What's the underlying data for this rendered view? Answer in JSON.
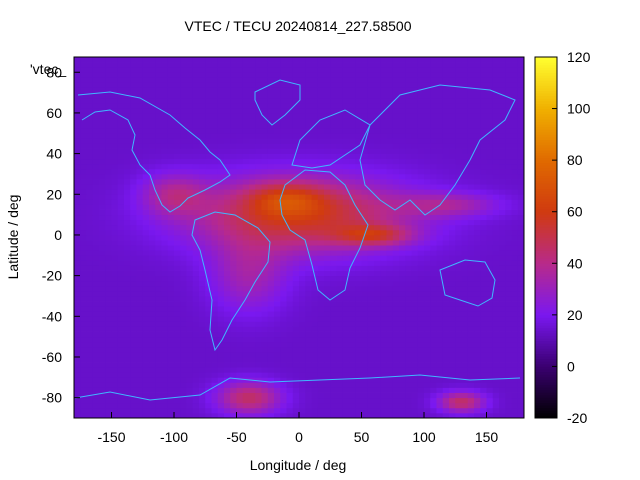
{
  "chart_data": {
    "type": "heatmap",
    "title": "VTEC / TECU 20240814_227.58500",
    "xlabel": "Longitude / deg",
    "ylabel": "Latitude / deg",
    "xlim": [
      -180,
      180
    ],
    "ylim": [
      -90,
      87.5
    ],
    "x_ticks": [
      -150,
      -100,
      -50,
      0,
      50,
      100,
      150
    ],
    "y_ticks": [
      -80,
      -60,
      -40,
      -20,
      0,
      20,
      40,
      60,
      80
    ],
    "legend_label": "'vtec_",
    "colorbar": {
      "range": [
        -20,
        120
      ],
      "ticks": [
        -20,
        0,
        20,
        40,
        60,
        80,
        100,
        120
      ],
      "stops": [
        {
          "v": -20,
          "color": "#000000"
        },
        {
          "v": 0,
          "color": "#3a0070"
        },
        {
          "v": 20,
          "color": "#7a18f0"
        },
        {
          "v": 40,
          "color": "#b82a8a"
        },
        {
          "v": 60,
          "color": "#d03a10"
        },
        {
          "v": 80,
          "color": "#e06a00"
        },
        {
          "v": 100,
          "color": "#f0b000"
        },
        {
          "v": 120,
          "color": "#ffff30"
        }
      ]
    },
    "features": [
      {
        "lon": 0,
        "lat": 10,
        "slon": 85,
        "slat": 18,
        "amp": 44
      },
      {
        "lon": -10,
        "lat": 18,
        "slon": 30,
        "slat": 8,
        "amp": 22
      },
      {
        "lon": 60,
        "lat": 0,
        "slon": 30,
        "slat": 5,
        "amp": 28
      },
      {
        "lon": -40,
        "lat": -20,
        "slon": 30,
        "slat": 18,
        "amp": 18
      },
      {
        "lon": -40,
        "lat": -80,
        "slon": 25,
        "slat": 8,
        "amp": 32
      },
      {
        "lon": 130,
        "lat": -82,
        "slon": 18,
        "slat": 5,
        "amp": 32
      },
      {
        "lon": -100,
        "lat": 20,
        "slon": 25,
        "slat": 10,
        "amp": 20
      },
      {
        "lon": 120,
        "lat": 15,
        "slon": 40,
        "slat": 6,
        "amp": 18
      }
    ],
    "base_value": 14
  }
}
